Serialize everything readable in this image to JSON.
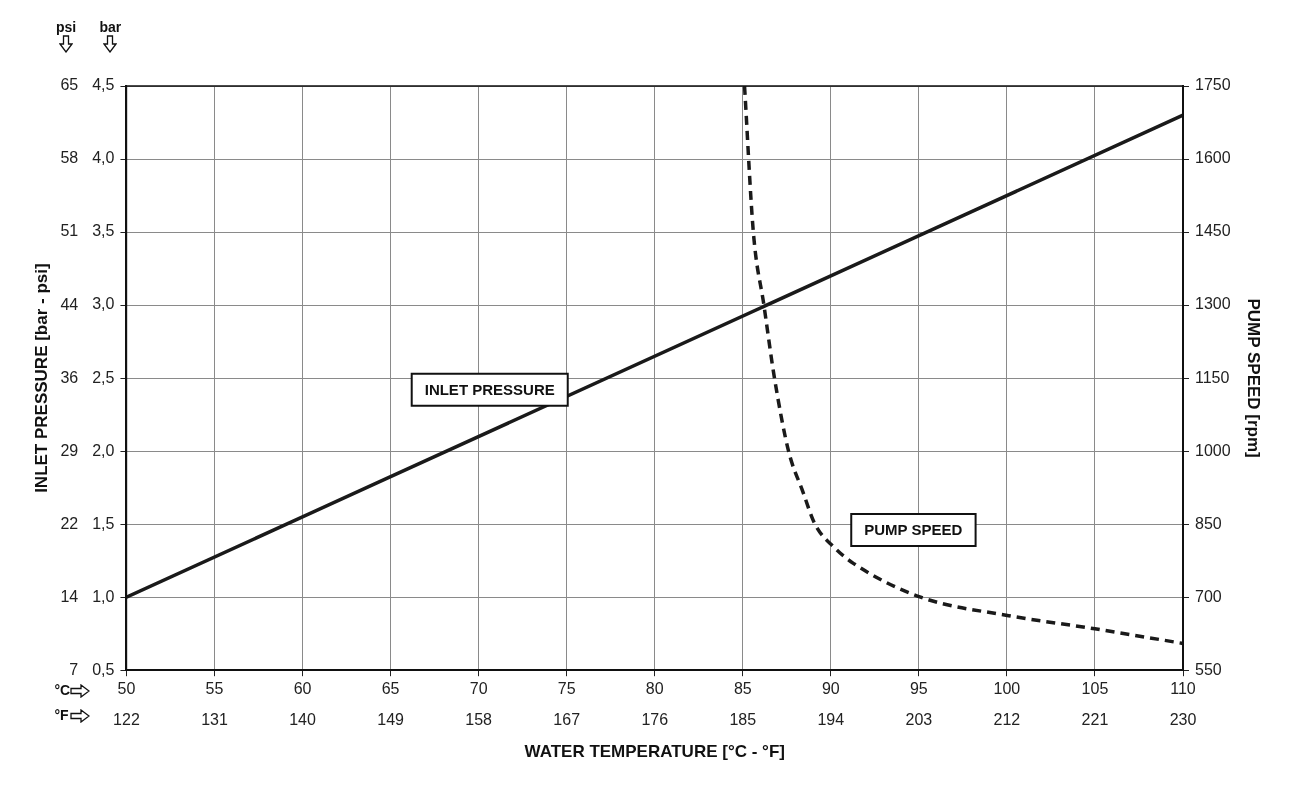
{
  "chart_data": {
    "type": "line",
    "xlabel": "WATER TEMPERATURE [°C - °F]",
    "ylabel": "INLET PRESSURE [bar - psi]",
    "y2label": "PUMP SPEED [rpm]",
    "xlim": [
      50,
      110
    ],
    "xticks": [
      50,
      55,
      60,
      65,
      70,
      75,
      80,
      85,
      90,
      95,
      100,
      105,
      110
    ],
    "x2lim": [
      122,
      230
    ],
    "x2ticks": [
      122,
      131,
      140,
      149,
      158,
      167,
      176,
      185,
      194,
      203,
      212,
      221,
      230
    ],
    "ylim": [
      0.5,
      4.5
    ],
    "yticks": [
      {
        "value": 0.5,
        "label": "0,5"
      },
      {
        "value": 1.0,
        "label": "1,0"
      },
      {
        "value": 1.5,
        "label": "1,5"
      },
      {
        "value": 2.0,
        "label": "2,0"
      },
      {
        "value": 2.5,
        "label": "2,5"
      },
      {
        "value": 3.0,
        "label": "3,0"
      },
      {
        "value": 3.5,
        "label": "3,5"
      },
      {
        "value": 4.0,
        "label": "4,0"
      },
      {
        "value": 4.5,
        "label": "4,5"
      }
    ],
    "y3lim": [
      7.25,
      65.27
    ],
    "y3ticks": [
      {
        "value": 7.25,
        "label": "7"
      },
      {
        "value": 14.5,
        "label": "14"
      },
      {
        "value": 21.76,
        "label": "22"
      },
      {
        "value": 29.01,
        "label": "29"
      },
      {
        "value": 36.26,
        "label": "36"
      },
      {
        "value": 43.51,
        "label": "44"
      },
      {
        "value": 50.77,
        "label": "51"
      },
      {
        "value": 58.02,
        "label": "58"
      },
      {
        "value": 65.27,
        "label": "65"
      }
    ],
    "y2lim": [
      550,
      1750
    ],
    "y2ticks": [
      550,
      700,
      850,
      1000,
      1150,
      1300,
      1450,
      1600,
      1750
    ],
    "grid": true,
    "legend": false,
    "marker": "none",
    "annotations": [
      "psi",
      "bar",
      "°C",
      "°F"
    ],
    "series": [
      {
        "name": "INLET PRESSURE",
        "color": "#1a1a1a",
        "line_style": "solid",
        "x": [
          50,
          110
        ],
        "values": [
          1.0,
          4.3
        ]
      },
      {
        "name": "PUMP SPEED",
        "color": "#1a1a1a",
        "line_style": "dashed",
        "axis": "y2",
        "x": [
          85.1,
          85.6,
          86.2,
          86.8,
          87.6,
          88.4,
          89.1,
          90.2,
          91.3,
          95.1,
          100.1,
          105,
          110
        ],
        "values": [
          1750,
          1450,
          1300,
          1150,
          1000,
          918,
          850,
          802,
          769,
          700,
          662,
          635,
          605
        ]
      }
    ]
  }
}
